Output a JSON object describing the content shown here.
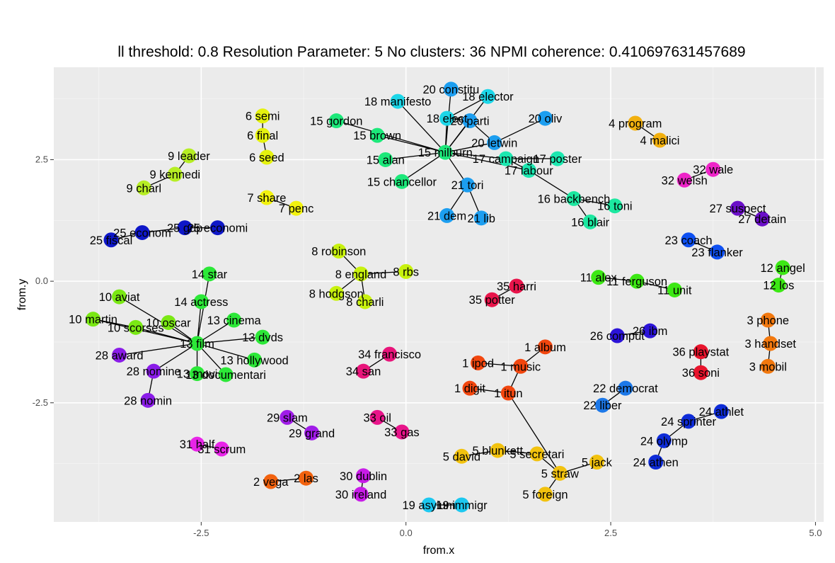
{
  "chart_data": {
    "type": "network-scatter",
    "title": "ll threshold: 0.8 Resolution Parameter: 5 No clusters: 36 NPMI coherence: 0.410697631457689",
    "xlabel": "from.x",
    "ylabel": "from.y",
    "xlim": [
      -4.3,
      5.1
    ],
    "ylim": [
      -4.95,
      4.4
    ],
    "xticks": [
      -2.5,
      0.0,
      2.5,
      5.0
    ],
    "xtick_labels": [
      "-2.5",
      "0.0",
      "2.5",
      "5.0"
    ],
    "yticks": [
      -2.5,
      0.0,
      2.5
    ],
    "ytick_labels": [
      "-2.5",
      "0.0",
      "2.5"
    ],
    "grid": true,
    "nodes": [
      {
        "id": "6 semi",
        "x": -1.75,
        "y": 3.4,
        "color": "#E5F20E"
      },
      {
        "id": "6 final",
        "x": -1.75,
        "y": 3.0,
        "color": "#E5F20E"
      },
      {
        "id": "6 seed",
        "x": -1.7,
        "y": 2.55,
        "color": "#E5F20E"
      },
      {
        "id": "9 leader",
        "x": -2.65,
        "y": 2.58,
        "color": "#B6EE24"
      },
      {
        "id": "9 kennedi",
        "x": -2.82,
        "y": 2.2,
        "color": "#B6EE24"
      },
      {
        "id": "9 charl",
        "x": -3.2,
        "y": 1.92,
        "color": "#B6EE24"
      },
      {
        "id": "7 share",
        "x": -1.7,
        "y": 1.72,
        "color": "#F2F20E"
      },
      {
        "id": "7 penc",
        "x": -1.34,
        "y": 1.5,
        "color": "#F2F20E"
      },
      {
        "id": "25 fiscal",
        "x": -3.6,
        "y": 0.85,
        "color": "#0E17C8"
      },
      {
        "id": "25 econom",
        "x": -3.22,
        "y": 1.0,
        "color": "#0E17C8"
      },
      {
        "id": "25 gdp",
        "x": -2.7,
        "y": 1.1,
        "color": "#0E17C8"
      },
      {
        "id": "25 economi",
        "x": -2.3,
        "y": 1.1,
        "color": "#0E17C8"
      },
      {
        "id": "18 manifesto",
        "x": -0.1,
        "y": 3.7,
        "color": "#1CD6E8"
      },
      {
        "id": "20 constitu",
        "x": 0.55,
        "y": 3.95,
        "color": "#1C9EF0"
      },
      {
        "id": "18 elector",
        "x": 1.0,
        "y": 3.8,
        "color": "#1CD6E8"
      },
      {
        "id": "18 elect",
        "x": 0.5,
        "y": 3.35,
        "color": "#1CD6E8"
      },
      {
        "id": "20 parti",
        "x": 0.78,
        "y": 3.3,
        "color": "#1C9EF0"
      },
      {
        "id": "20 oliv",
        "x": 1.7,
        "y": 3.35,
        "color": "#1C9EF0"
      },
      {
        "id": "20 letwin",
        "x": 1.08,
        "y": 2.85,
        "color": "#1C9EF0"
      },
      {
        "id": "15 gordon",
        "x": -0.85,
        "y": 3.3,
        "color": "#1CE87A"
      },
      {
        "id": "15 brown",
        "x": -0.35,
        "y": 3.0,
        "color": "#1CE87A"
      },
      {
        "id": "15 alan",
        "x": -0.25,
        "y": 2.5,
        "color": "#1CE87A"
      },
      {
        "id": "15 milburn",
        "x": 0.48,
        "y": 2.65,
        "color": "#1CE87A"
      },
      {
        "id": "15 chancellor",
        "x": -0.05,
        "y": 2.05,
        "color": "#1CE87A"
      },
      {
        "id": "17 campaign",
        "x": 1.22,
        "y": 2.52,
        "color": "#1CE8B0"
      },
      {
        "id": "17 poster",
        "x": 1.85,
        "y": 2.52,
        "color": "#1CE8B0"
      },
      {
        "id": "17 labour",
        "x": 1.5,
        "y": 2.28,
        "color": "#1CE8B0"
      },
      {
        "id": "21 tori",
        "x": 0.75,
        "y": 1.98,
        "color": "#1C9EF0"
      },
      {
        "id": "21 dem",
        "x": 0.5,
        "y": 1.35,
        "color": "#1C9EF0"
      },
      {
        "id": "21 lib",
        "x": 0.92,
        "y": 1.3,
        "color": "#1C9EF0"
      },
      {
        "id": "16 backbench",
        "x": 2.05,
        "y": 1.7,
        "color": "#1CE8A0"
      },
      {
        "id": "16 toni",
        "x": 2.55,
        "y": 1.55,
        "color": "#1CE8A0"
      },
      {
        "id": "16 blair",
        "x": 2.25,
        "y": 1.22,
        "color": "#1CE8A0"
      },
      {
        "id": "4 program",
        "x": 2.8,
        "y": 3.25,
        "color": "#F2B00E"
      },
      {
        "id": "4 malici",
        "x": 3.1,
        "y": 2.9,
        "color": "#F2B00E"
      },
      {
        "id": "32 wale",
        "x": 3.75,
        "y": 2.3,
        "color": "#EE24C8"
      },
      {
        "id": "32 welsh",
        "x": 3.4,
        "y": 2.08,
        "color": "#EE24C8"
      },
      {
        "id": "27 suspect",
        "x": 4.05,
        "y": 1.5,
        "color": "#6A0EC8"
      },
      {
        "id": "27 detain",
        "x": 4.35,
        "y": 1.28,
        "color": "#6A0EC8"
      },
      {
        "id": "23 coach",
        "x": 3.45,
        "y": 0.85,
        "color": "#0E50F2"
      },
      {
        "id": "23 flanker",
        "x": 3.8,
        "y": 0.6,
        "color": "#0E50F2"
      },
      {
        "id": "8 robinson",
        "x": -0.82,
        "y": 0.62,
        "color": "#C8F20E"
      },
      {
        "id": "8 england",
        "x": -0.55,
        "y": 0.15,
        "color": "#C8F20E"
      },
      {
        "id": "8 rbs",
        "x": 0.0,
        "y": 0.2,
        "color": "#C8F20E"
      },
      {
        "id": "8 hodgson",
        "x": -0.85,
        "y": -0.25,
        "color": "#C8F20E"
      },
      {
        "id": "8 charli",
        "x": -0.5,
        "y": -0.42,
        "color": "#C8F20E"
      },
      {
        "id": "35 harri",
        "x": 1.35,
        "y": -0.1,
        "color": "#E8144A"
      },
      {
        "id": "35 potter",
        "x": 1.05,
        "y": -0.38,
        "color": "#E8144A"
      },
      {
        "id": "11 alex",
        "x": 2.35,
        "y": 0.08,
        "color": "#3CE814"
      },
      {
        "id": "11 ferguson",
        "x": 2.82,
        "y": 0.0,
        "color": "#3CE814"
      },
      {
        "id": "11 unit",
        "x": 3.28,
        "y": -0.18,
        "color": "#3CE814"
      },
      {
        "id": "12 angel",
        "x": 4.6,
        "y": 0.28,
        "color": "#3CE814"
      },
      {
        "id": "12 los",
        "x": 4.55,
        "y": -0.08,
        "color": "#3CE814"
      },
      {
        "id": "14 star",
        "x": -2.4,
        "y": 0.15,
        "color": "#2CE838"
      },
      {
        "id": "14 actress",
        "x": -2.5,
        "y": -0.42,
        "color": "#2CE838"
      },
      {
        "id": "10 aviat",
        "x": -3.5,
        "y": -0.32,
        "color": "#7AE814"
      },
      {
        "id": "10 martin",
        "x": -3.82,
        "y": -0.78,
        "color": "#7AE814"
      },
      {
        "id": "10 scorses",
        "x": -3.3,
        "y": -0.95,
        "color": "#7AE814"
      },
      {
        "id": "10 oscar",
        "x": -2.9,
        "y": -0.85,
        "color": "#7AE814"
      },
      {
        "id": "13 cinema",
        "x": -2.1,
        "y": -0.8,
        "color": "#2CE838"
      },
      {
        "id": "13 film",
        "x": -2.55,
        "y": -1.28,
        "color": "#2CE838"
      },
      {
        "id": "13 dvds",
        "x": -1.75,
        "y": -1.15,
        "color": "#2CE838"
      },
      {
        "id": "13 hollywood",
        "x": -1.85,
        "y": -1.62,
        "color": "#2CE838"
      },
      {
        "id": "13 movi",
        "x": -2.55,
        "y": -1.9,
        "color": "#2CE838"
      },
      {
        "id": "13 documentari",
        "x": -2.2,
        "y": -1.92,
        "color": "#2CE838"
      },
      {
        "id": "28 award",
        "x": -3.5,
        "y": -1.52,
        "color": "#8A1CE8"
      },
      {
        "id": "28 nomine",
        "x": -3.08,
        "y": -1.85,
        "color": "#8A1CE8"
      },
      {
        "id": "28 nomin",
        "x": -3.15,
        "y": -2.45,
        "color": "#8A1CE8"
      },
      {
        "id": "34 francisco",
        "x": -0.2,
        "y": -1.5,
        "color": "#E8147A"
      },
      {
        "id": "34 san",
        "x": -0.52,
        "y": -1.85,
        "color": "#E8147A"
      },
      {
        "id": "1 album",
        "x": 1.7,
        "y": -1.35,
        "color": "#F2460E"
      },
      {
        "id": "1 ipod",
        "x": 0.88,
        "y": -1.68,
        "color": "#F2460E"
      },
      {
        "id": "1 music",
        "x": 1.4,
        "y": -1.75,
        "color": "#F2460E"
      },
      {
        "id": "1 digit",
        "x": 0.78,
        "y": -2.2,
        "color": "#F2460E"
      },
      {
        "id": "1 itun",
        "x": 1.25,
        "y": -2.3,
        "color": "#F2460E"
      },
      {
        "id": "26 comput",
        "x": 2.58,
        "y": -1.12,
        "color": "#2C14D8"
      },
      {
        "id": "26 ibm",
        "x": 2.98,
        "y": -1.02,
        "color": "#2C14D8"
      },
      {
        "id": "36 playstat",
        "x": 3.6,
        "y": -1.45,
        "color": "#E8142C"
      },
      {
        "id": "36 soni",
        "x": 3.6,
        "y": -1.88,
        "color": "#E8142C"
      },
      {
        "id": "3 phone",
        "x": 4.42,
        "y": -0.8,
        "color": "#F2780E"
      },
      {
        "id": "3 handset",
        "x": 4.45,
        "y": -1.28,
        "color": "#F2780E"
      },
      {
        "id": "3 mobil",
        "x": 4.42,
        "y": -1.75,
        "color": "#F2780E"
      },
      {
        "id": "22 democrat",
        "x": 2.68,
        "y": -2.2,
        "color": "#1C78E8"
      },
      {
        "id": "22 liber",
        "x": 2.4,
        "y": -2.55,
        "color": "#1C78E8"
      },
      {
        "id": "24 athlet",
        "x": 3.85,
        "y": -2.68,
        "color": "#0E2CD8"
      },
      {
        "id": "24 sprinter",
        "x": 3.45,
        "y": -2.88,
        "color": "#0E2CD8"
      },
      {
        "id": "24 olymp",
        "x": 3.15,
        "y": -3.28,
        "color": "#0E2CD8"
      },
      {
        "id": "24 athen",
        "x": 3.05,
        "y": -3.72,
        "color": "#0E2CD8"
      },
      {
        "id": "29 slam",
        "x": -1.45,
        "y": -2.8,
        "color": "#A01CE8"
      },
      {
        "id": "29 grand",
        "x": -1.15,
        "y": -3.12,
        "color": "#A01CE8"
      },
      {
        "id": "33 oil",
        "x": -0.35,
        "y": -2.8,
        "color": "#E8148A"
      },
      {
        "id": "33 gas",
        "x": -0.05,
        "y": -3.1,
        "color": "#E8148A"
      },
      {
        "id": "31 half",
        "x": -2.55,
        "y": -3.35,
        "color": "#E824E8"
      },
      {
        "id": "31 scrum",
        "x": -2.25,
        "y": -3.45,
        "color": "#E824E8"
      },
      {
        "id": "5 david",
        "x": 0.68,
        "y": -3.6,
        "color": "#F2C20E"
      },
      {
        "id": "5 blunkett",
        "x": 1.12,
        "y": -3.48,
        "color": "#F2C20E"
      },
      {
        "id": "5 secretari",
        "x": 1.6,
        "y": -3.55,
        "color": "#F2C20E"
      },
      {
        "id": "5 jack",
        "x": 2.33,
        "y": -3.72,
        "color": "#F2C20E"
      },
      {
        "id": "5 straw",
        "x": 1.88,
        "y": -3.95,
        "color": "#F2C20E"
      },
      {
        "id": "5 foreign",
        "x": 1.7,
        "y": -4.38,
        "color": "#F2C20E"
      },
      {
        "id": "2 vega",
        "x": -1.65,
        "y": -4.12,
        "color": "#F2620E"
      },
      {
        "id": "2 las",
        "x": -1.22,
        "y": -4.05,
        "color": "#F2620E"
      },
      {
        "id": "30 dublin",
        "x": -0.52,
        "y": -4.0,
        "color": "#C81CE8"
      },
      {
        "id": "30 ireland",
        "x": -0.55,
        "y": -4.38,
        "color": "#C81CE8"
      },
      {
        "id": "19 asylum",
        "x": 0.28,
        "y": -4.6,
        "color": "#1CC8F0"
      },
      {
        "id": "19 immigr",
        "x": 0.68,
        "y": -4.6,
        "color": "#1CC8F0"
      }
    ],
    "edges": [
      [
        "6 semi",
        "6 final"
      ],
      [
        "6 final",
        "6 seed"
      ],
      [
        "9 leader",
        "9 kennedi"
      ],
      [
        "9 kennedi",
        "9 charl"
      ],
      [
        "7 share",
        "7 penc"
      ],
      [
        "25 fiscal",
        "25 econom"
      ],
      [
        "25 econom",
        "25 gdp"
      ],
      [
        "25 gdp",
        "25 economi"
      ],
      [
        "15 milburn",
        "18 manifesto"
      ],
      [
        "15 milburn",
        "20 constitu"
      ],
      [
        "15 milburn",
        "18 elector"
      ],
      [
        "15 milburn",
        "18 elect"
      ],
      [
        "15 milburn",
        "20 parti"
      ],
      [
        "15 milburn",
        "20 letwin"
      ],
      [
        "15 milburn",
        "15 gordon"
      ],
      [
        "15 milburn",
        "15 brown"
      ],
      [
        "15 milburn",
        "15 alan"
      ],
      [
        "15 milburn",
        "15 chancellor"
      ],
      [
        "15 milburn",
        "17 campaign"
      ],
      [
        "15 milburn",
        "21 tori"
      ],
      [
        "15 milburn",
        "17 labour"
      ],
      [
        "18 elect",
        "18 elector"
      ],
      [
        "18 elect",
        "20 parti"
      ],
      [
        "20 parti",
        "20 letwin"
      ],
      [
        "20 letwin",
        "20 oliv"
      ],
      [
        "17 campaign",
        "17 poster"
      ],
      [
        "17 labour",
        "17 campaign"
      ],
      [
        "21 tori",
        "21 dem"
      ],
      [
        "21 tori",
        "21 lib"
      ],
      [
        "17 labour",
        "16 backbench"
      ],
      [
        "16 backbench",
        "16 toni"
      ],
      [
        "16 backbench",
        "16 blair"
      ],
      [
        "4 program",
        "4 malici"
      ],
      [
        "32 wale",
        "32 welsh"
      ],
      [
        "27 suspect",
        "27 detain"
      ],
      [
        "23 coach",
        "23 flanker"
      ],
      [
        "8 robinson",
        "8 england"
      ],
      [
        "8 england",
        "8 rbs"
      ],
      [
        "8 england",
        "8 hodgson"
      ],
      [
        "8 england",
        "8 charli"
      ],
      [
        "35 harri",
        "35 potter"
      ],
      [
        "11 alex",
        "11 ferguson"
      ],
      [
        "11 ferguson",
        "11 unit"
      ],
      [
        "12 angel",
        "12 los"
      ],
      [
        "13 film",
        "14 star"
      ],
      [
        "13 film",
        "14 actress"
      ],
      [
        "13 film",
        "10 aviat"
      ],
      [
        "13 film",
        "10 martin"
      ],
      [
        "13 film",
        "10 scorses"
      ],
      [
        "13 film",
        "10 oscar"
      ],
      [
        "13 film",
        "13 cinema"
      ],
      [
        "13 film",
        "13 dvds"
      ],
      [
        "13 film",
        "13 hollywood"
      ],
      [
        "13 film",
        "13 movi"
      ],
      [
        "13 film",
        "13 documentari"
      ],
      [
        "13 film",
        "28 award"
      ],
      [
        "13 film",
        "28 nomine"
      ],
      [
        "28 nomine",
        "28 nomin"
      ],
      [
        "10 martin",
        "10 scorses"
      ],
      [
        "34 francisco",
        "34 san"
      ],
      [
        "1 album",
        "1 music"
      ],
      [
        "1 ipod",
        "1 music"
      ],
      [
        "1 music",
        "1 itun"
      ],
      [
        "1 digit",
        "1 itun"
      ],
      [
        "26 comput",
        "26 ibm"
      ],
      [
        "36 playstat",
        "36 soni"
      ],
      [
        "3 phone",
        "3 handset"
      ],
      [
        "3 handset",
        "3 mobil"
      ],
      [
        "22 democrat",
        "22 liber"
      ],
      [
        "24 athlet",
        "24 sprinter"
      ],
      [
        "24 sprinter",
        "24 olymp"
      ],
      [
        "24 olymp",
        "24 athen"
      ],
      [
        "29 slam",
        "29 grand"
      ],
      [
        "33 oil",
        "33 gas"
      ],
      [
        "31 half",
        "31 scrum"
      ],
      [
        "5 david",
        "5 blunkett"
      ],
      [
        "5 blunkett",
        "5 secretari"
      ],
      [
        "5 secretari",
        "5 straw"
      ],
      [
        "5 straw",
        "5 jack"
      ],
      [
        "5 straw",
        "5 foreign"
      ],
      [
        "1 itun",
        "5 straw"
      ],
      [
        "2 vega",
        "2 las"
      ],
      [
        "30 dublin",
        "30 ireland"
      ],
      [
        "19 asylum",
        "19 immigr"
      ]
    ]
  }
}
